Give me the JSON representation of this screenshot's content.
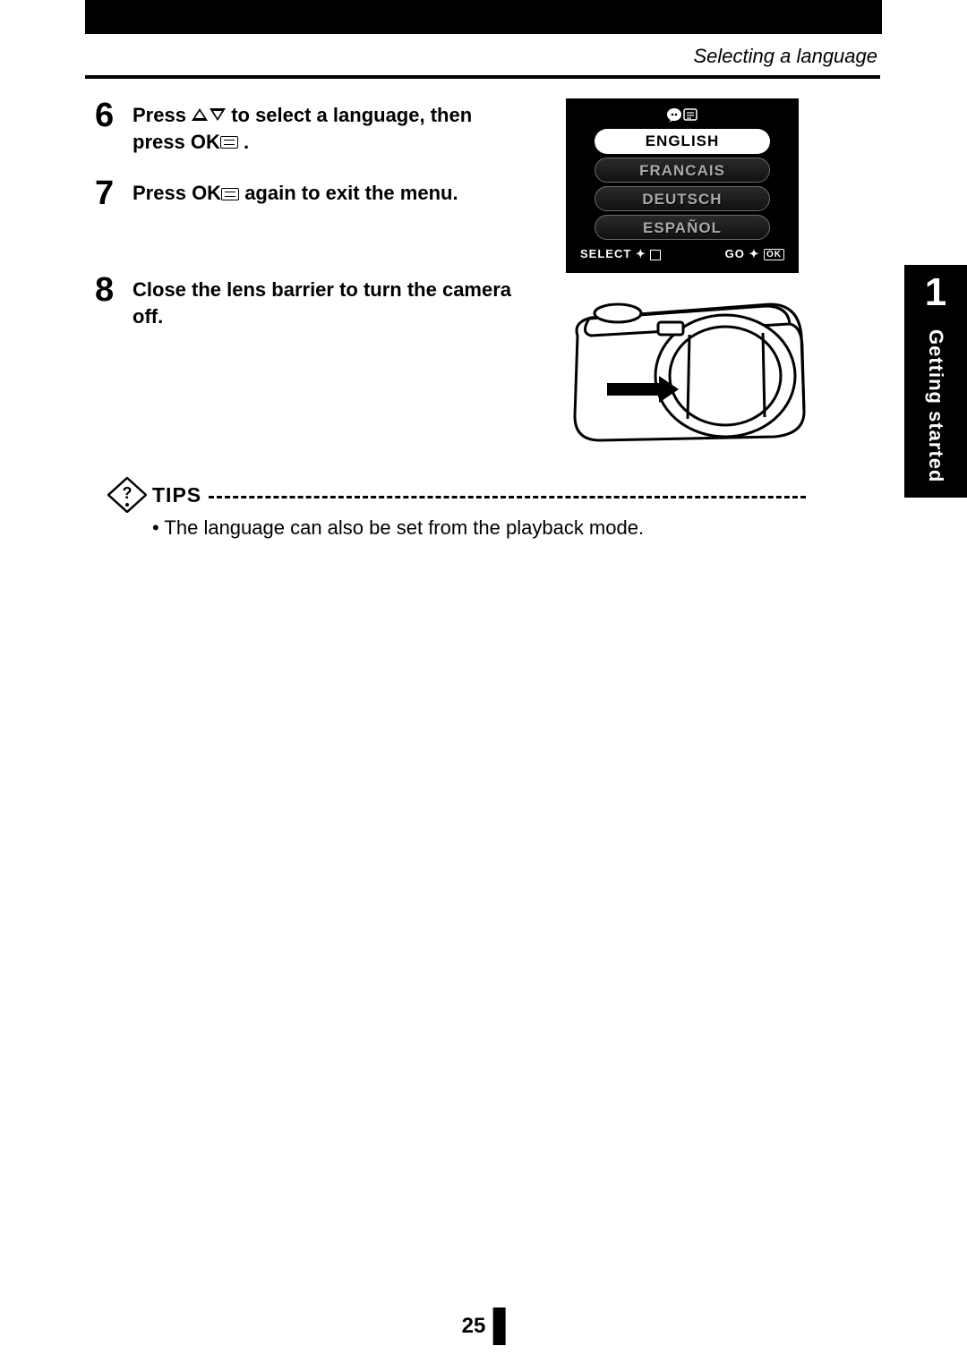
{
  "header": {
    "title": "Selecting a language"
  },
  "chapter": {
    "number": "1",
    "title": "Getting started"
  },
  "steps": [
    {
      "num": "6",
      "pre": "Press ",
      "mid": " to select a language, then press ",
      "post": " ."
    },
    {
      "num": "7",
      "pre": "Press ",
      "mid": " again to exit the menu.",
      "post": ""
    },
    {
      "num": "8",
      "pre": "Close the lens barrier to turn the camera off.",
      "mid": "",
      "post": ""
    }
  ],
  "ok_label": "OK",
  "lang_screen": {
    "options": [
      "ENGLISH",
      "FRANCAIS",
      "DEUTSCH",
      "ESPAÑOL"
    ],
    "selected_index": 0,
    "select_label": "SELECT",
    "go_label": "GO",
    "ok_label": "OK",
    "bg": "#000000",
    "sel_bg": "#ffffff",
    "sel_fg": "#000000",
    "unsel_fg": "#a9a9a9"
  },
  "tips": {
    "label": "TIPS",
    "bullet": "•",
    "text": "The language can also be set from the playback mode."
  },
  "page_number": "25"
}
